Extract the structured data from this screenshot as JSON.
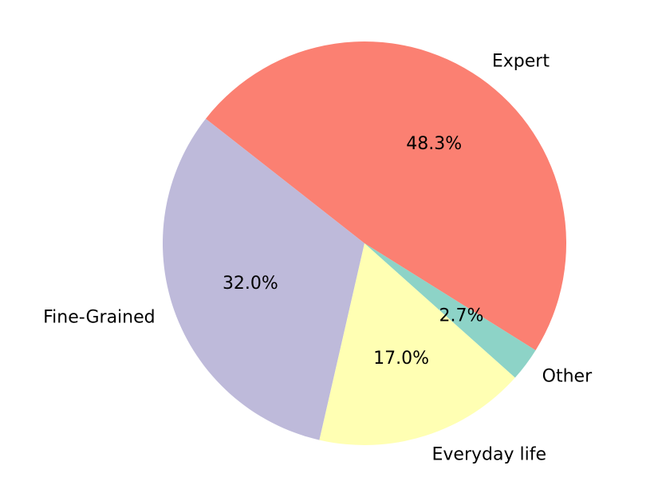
{
  "chart_data": {
    "type": "pie",
    "title": "",
    "slices": [
      {
        "label": "Expert",
        "value": 48.3,
        "pct_label": "48.3%",
        "color": "#fb8072"
      },
      {
        "label": "Fine-Grained",
        "value": 32.0,
        "pct_label": "32.0%",
        "color": "#bebada"
      },
      {
        "label": "Everyday life",
        "value": 17.0,
        "pct_label": "17.0%",
        "color": "#ffffb3"
      },
      {
        "label": "Other",
        "value": 2.7,
        "pct_label": "2.7%",
        "color": "#8dd3c7"
      }
    ],
    "legend": "none"
  }
}
